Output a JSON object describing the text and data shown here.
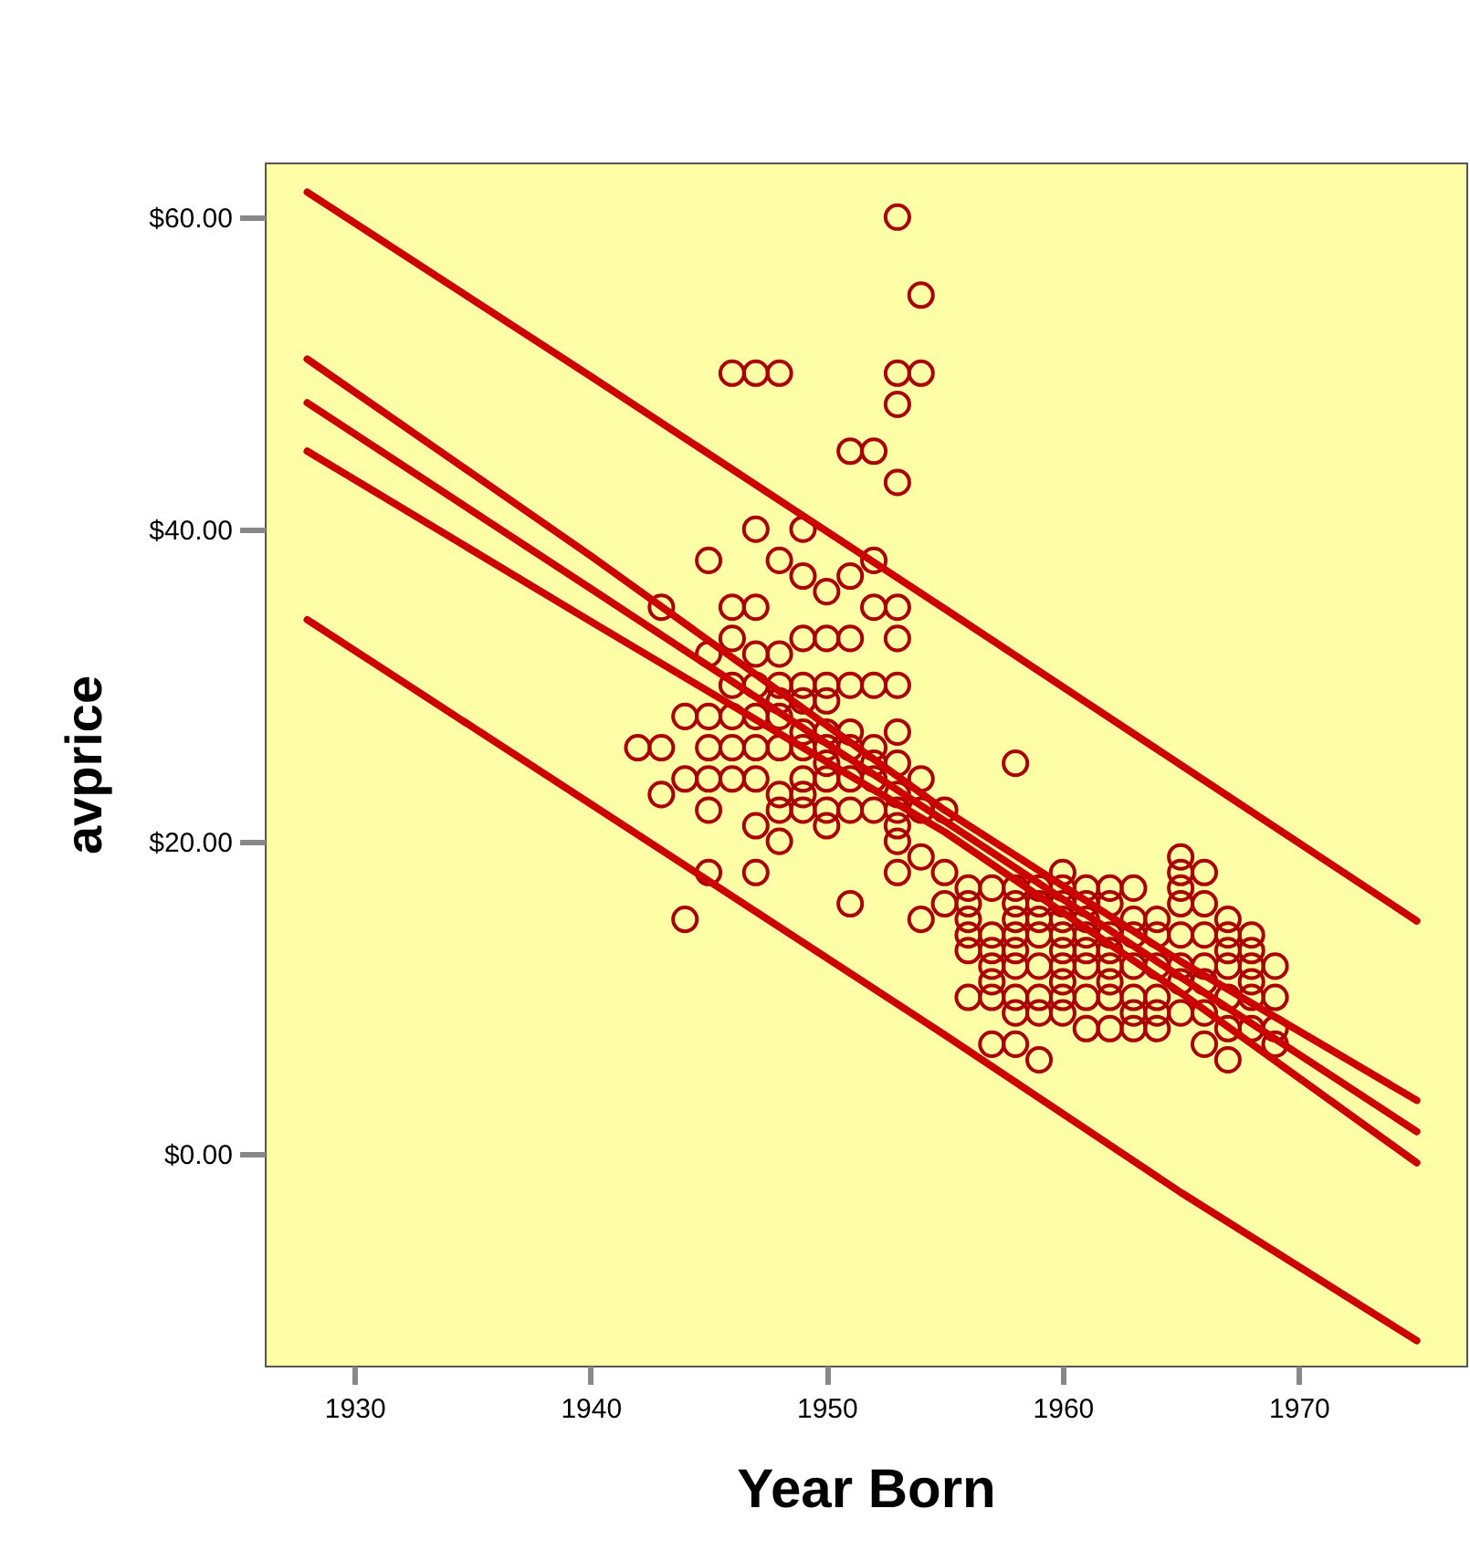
{
  "chart_data": {
    "type": "scatter",
    "xlabel": "Year Born",
    "ylabel": "avprice",
    "xlim": [
      1926.2,
      1977.1
    ],
    "ylim": [
      -13.6,
      63.5
    ],
    "xticks": [
      1930,
      1940,
      1950,
      1960,
      1970
    ],
    "yticks": [
      {
        "value": 0,
        "label": "$0.00"
      },
      {
        "value": 20,
        "label": "$20.00"
      },
      {
        "value": 40,
        "label": "$40.00"
      },
      {
        "value": 60,
        "label": "$60.00"
      }
    ],
    "line_style": "solid",
    "series": [
      {
        "marker": "circle",
        "color": "#aa0000",
        "x": [
          1942,
          1943,
          1943,
          1943,
          1944,
          1944,
          1944,
          1945,
          1945,
          1945,
          1945,
          1945,
          1945,
          1945,
          1946,
          1946,
          1946,
          1946,
          1946,
          1946,
          1946,
          1947,
          1947,
          1947,
          1947,
          1947,
          1947,
          1947,
          1947,
          1947,
          1947,
          1948,
          1948,
          1948,
          1948,
          1948,
          1948,
          1948,
          1948,
          1948,
          1948,
          1949,
          1949,
          1949,
          1949,
          1949,
          1949,
          1949,
          1949,
          1949,
          1949,
          1950,
          1950,
          1950,
          1950,
          1950,
          1950,
          1950,
          1950,
          1950,
          1950,
          1951,
          1951,
          1951,
          1951,
          1951,
          1951,
          1951,
          1951,
          1951,
          1952,
          1952,
          1952,
          1952,
          1952,
          1952,
          1952,
          1952,
          1953,
          1953,
          1953,
          1953,
          1953,
          1953,
          1953,
          1953,
          1953,
          1953,
          1953,
          1953,
          1953,
          1953,
          1954,
          1954,
          1954,
          1954,
          1954,
          1954,
          1955,
          1955,
          1955,
          1956,
          1956,
          1956,
          1956,
          1956,
          1956,
          1957,
          1957,
          1957,
          1957,
          1957,
          1957,
          1957,
          1958,
          1958,
          1958,
          1958,
          1958,
          1958,
          1958,
          1958,
          1958,
          1958,
          1959,
          1959,
          1959,
          1959,
          1959,
          1959,
          1959,
          1959,
          1960,
          1960,
          1960,
          1960,
          1960,
          1960,
          1960,
          1960,
          1960,
          1960,
          1961,
          1961,
          1961,
          1961,
          1961,
          1961,
          1961,
          1961,
          1962,
          1962,
          1962,
          1962,
          1962,
          1962,
          1962,
          1962,
          1963,
          1963,
          1963,
          1963,
          1963,
          1963,
          1963,
          1964,
          1964,
          1964,
          1964,
          1964,
          1964,
          1965,
          1965,
          1965,
          1965,
          1965,
          1965,
          1965,
          1965,
          1966,
          1966,
          1966,
          1966,
          1966,
          1966,
          1966,
          1967,
          1967,
          1967,
          1967,
          1967,
          1967,
          1967,
          1968,
          1968,
          1968,
          1968,
          1968,
          1968,
          1969,
          1969,
          1969,
          1969
        ],
        "values": [
          26,
          35,
          26,
          23,
          28,
          24,
          15,
          38,
          32,
          28,
          26,
          24,
          22,
          18,
          50,
          35,
          33,
          30,
          28,
          26,
          24,
          50,
          40,
          35,
          32,
          30,
          28,
          26,
          24,
          21,
          18,
          50,
          38,
          32,
          30,
          29,
          28,
          26,
          23,
          22,
          20,
          40,
          37,
          33,
          30,
          29,
          27,
          26,
          24,
          23,
          22,
          36,
          33,
          30,
          29,
          27,
          26,
          25,
          24,
          22,
          21,
          45,
          37,
          33,
          30,
          27,
          26,
          24,
          22,
          16,
          45,
          38,
          35,
          30,
          26,
          25,
          24,
          22,
          60,
          50,
          48,
          43,
          35,
          33,
          30,
          27,
          25,
          23,
          22,
          21,
          20,
          18,
          55,
          50,
          24,
          22,
          19,
          15,
          22,
          18,
          16,
          17,
          16,
          15,
          14,
          13,
          10,
          17,
          14,
          13,
          12,
          11,
          10,
          7,
          25,
          17,
          16,
          15,
          14,
          13,
          12,
          10,
          9,
          7,
          17,
          16,
          15,
          14,
          12,
          10,
          9,
          6,
          18,
          17,
          16,
          15,
          14,
          13,
          12,
          11,
          10,
          9,
          17,
          16,
          15,
          14,
          13,
          12,
          10,
          8,
          17,
          16,
          14,
          13,
          12,
          11,
          10,
          8,
          17,
          15,
          14,
          12,
          10,
          9,
          8,
          15,
          14,
          12,
          10,
          9,
          8,
          19,
          18,
          17,
          16,
          14,
          12,
          11,
          9,
          18,
          16,
          14,
          12,
          11,
          9,
          7,
          15,
          14,
          13,
          12,
          10,
          8,
          6,
          14,
          13,
          12,
          11,
          10,
          8,
          12,
          10,
          8,
          7
        ]
      },
      {
        "type": "line",
        "color": "#cc0000",
        "x": [
          1928,
          1940,
          1955,
          1965,
          1975
        ],
        "values": [
          61.6,
          49.8,
          34.9,
          24.9,
          14.9
        ]
      },
      {
        "type": "line",
        "color": "#cc0000",
        "x": [
          1928,
          1940,
          1955,
          1965,
          1975
        ],
        "values": [
          50.9,
          38.3,
          22.0,
          12.3,
          3.4
        ]
      },
      {
        "type": "line",
        "color": "#cc0000",
        "x": [
          1928,
          1940,
          1955,
          1965,
          1975
        ],
        "values": [
          48.1,
          36.2,
          21.3,
          11.3,
          1.4
        ]
      },
      {
        "type": "line",
        "color": "#cc0000",
        "x": [
          1928,
          1940,
          1955,
          1965,
          1975
        ],
        "values": [
          45.0,
          34.1,
          20.6,
          10.3,
          -0.6
        ]
      },
      {
        "type": "line",
        "color": "#cc0000",
        "x": [
          1928,
          1940,
          1955,
          1965,
          1975
        ],
        "values": [
          34.2,
          22.4,
          7.6,
          -2.5,
          -12.0
        ]
      }
    ]
  }
}
